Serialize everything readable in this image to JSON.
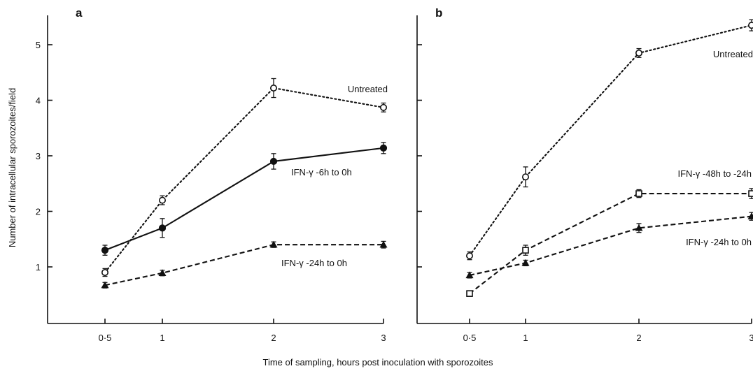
{
  "figure": {
    "xlabel": "Time of sampling, hours post inoculation with sporozoites",
    "ylabel": "Number of intracellular sporozoites/field"
  },
  "chart_data": [
    {
      "panel": "a",
      "type": "line",
      "x_categories": [
        "0·5",
        "1",
        "2",
        "3"
      ],
      "y_ticks": [
        "1",
        "2",
        "3",
        "4",
        "5"
      ],
      "ylim": [
        0.25,
        5.5
      ],
      "series": [
        {
          "name": "Untreated",
          "marker": "open-circle",
          "dash": "dotted",
          "x": [
            0.5,
            1,
            2,
            3
          ],
          "y": [
            0.9,
            2.2,
            4.22,
            3.87
          ],
          "err": [
            0.07,
            0.08,
            0.17,
            0.08
          ]
        },
        {
          "name": "IFN-γ  -6h to 0h",
          "marker": "filled-circle",
          "dash": "solid",
          "x": [
            0.5,
            1,
            2,
            3
          ],
          "y": [
            1.3,
            1.7,
            2.9,
            3.14
          ],
          "err": [
            0.09,
            0.17,
            0.14,
            0.1
          ]
        },
        {
          "name": "IFN-γ  -24h to 0h",
          "marker": "filled-triangle",
          "dash": "dashed",
          "x": [
            0.5,
            1,
            2,
            3
          ],
          "y": [
            0.67,
            0.89,
            1.4,
            1.4
          ],
          "err": [
            0.05,
            0.05,
            0.05,
            0.06
          ]
        }
      ]
    },
    {
      "panel": "b",
      "type": "line",
      "x_categories": [
        "0·5",
        "1",
        "2",
        "3"
      ],
      "y_ticks": [
        "1",
        "2",
        "3",
        "4",
        "5"
      ],
      "ylim": [
        0.25,
        5.5
      ],
      "series": [
        {
          "name": "Untreated",
          "marker": "open-circle",
          "dash": "dotted",
          "x": [
            0.5,
            1,
            2,
            3
          ],
          "y": [
            1.2,
            2.62,
            4.85,
            5.35
          ],
          "err": [
            0.07,
            0.18,
            0.08,
            0.1
          ]
        },
        {
          "name": "IFN-γ  -48h to -24h",
          "marker": "open-square",
          "dash": "dashed",
          "x": [
            0.5,
            1,
            2,
            3
          ],
          "y": [
            0.52,
            1.3,
            2.32,
            2.32
          ],
          "err": [
            0.05,
            0.09,
            0.07,
            0.09
          ]
        },
        {
          "name": "IFN-γ  -24h to 0h",
          "marker": "filled-triangle",
          "dash": "dashed",
          "x": [
            0.5,
            1,
            2,
            3
          ],
          "y": [
            0.85,
            1.07,
            1.7,
            1.91
          ],
          "err": [
            0.05,
            0.05,
            0.08,
            0.07
          ]
        }
      ]
    }
  ]
}
